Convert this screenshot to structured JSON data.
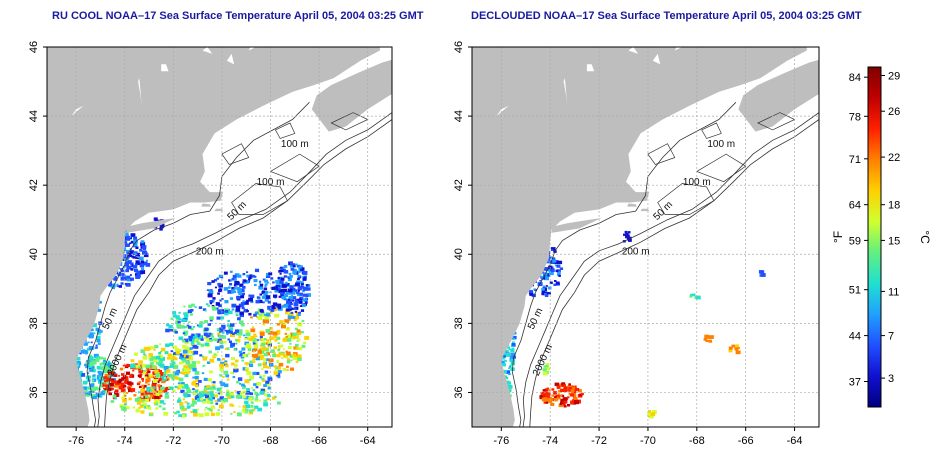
{
  "panels": [
    {
      "id": "left",
      "title": "RU COOL NOAA–17 Sea Surface Temperature April 05, 2004 03:25 GMT"
    },
    {
      "id": "right",
      "title": "DECLOUDED NOAA–17 Sea Surface Temperature April 05, 2004 03:25 GMT"
    }
  ],
  "map": {
    "lon_range": [
      -77.2,
      -63.0
    ],
    "lat_range": [
      35.0,
      46.0
    ],
    "lon_ticks": [
      "-76",
      "-74",
      "-72",
      "-70",
      "-68",
      "-66",
      "-64"
    ],
    "lat_ticks": [
      "36",
      "38",
      "40",
      "42",
      "44",
      "46"
    ],
    "grid": "dotted",
    "land_color": "#bebebe",
    "ocean_color": "#ffffff",
    "isobath_labels": [
      {
        "text": "100 m",
        "lon": -67.0,
        "lat": 43.1
      },
      {
        "text": "100 m",
        "lon": -68.0,
        "lat": 42.0
      },
      {
        "text": "50 m",
        "lon": -69.3,
        "lat": 41.2
      },
      {
        "text": "200 m",
        "lon": -70.5,
        "lat": 40.0
      },
      {
        "text": "50 m",
        "lon": -74.5,
        "lat": 38.1
      },
      {
        "text": "2000 m",
        "lon": -74.2,
        "lat": 36.9
      }
    ]
  },
  "colorbar": {
    "fahrenheit_ticks": [
      "84",
      "78",
      "71",
      "64",
      "59",
      "51",
      "44",
      "37"
    ],
    "celsius_ticks": [
      "29",
      "26",
      "22",
      "18",
      "15",
      "11",
      "7",
      "3"
    ],
    "fahrenheit_unit": "°F",
    "celsius_unit": "°C",
    "colors": [
      "#800000",
      "#c00000",
      "#ff2000",
      "#ff8000",
      "#ffd000",
      "#d0ff30",
      "#60f080",
      "#20e0d0",
      "#20a0ff",
      "#2050ff",
      "#1010d0",
      "#000080"
    ]
  }
}
